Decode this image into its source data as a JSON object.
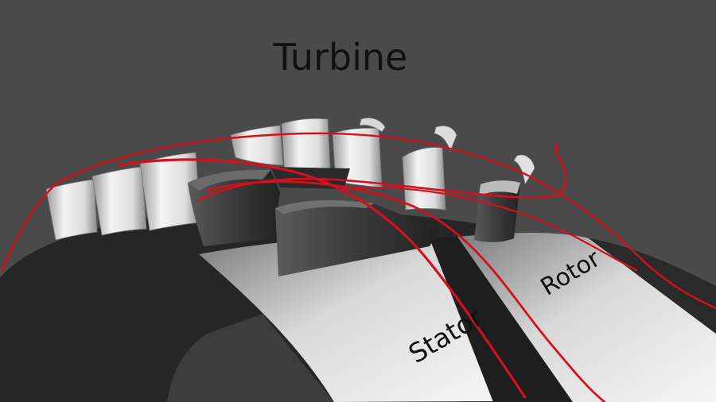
{
  "title": "Turbine",
  "labels": {
    "stator": "Stator",
    "rotor": "Rotor"
  },
  "colors": {
    "background": "#4a4a4a",
    "ring_dark": "#262626",
    "ring_light": "#e6e6e6",
    "groove": "#1e1e1e",
    "blade_light": "#f2f2f2",
    "blade_dark": "#2e2e2e",
    "streamline": "#d4101e",
    "text": "#111111"
  }
}
